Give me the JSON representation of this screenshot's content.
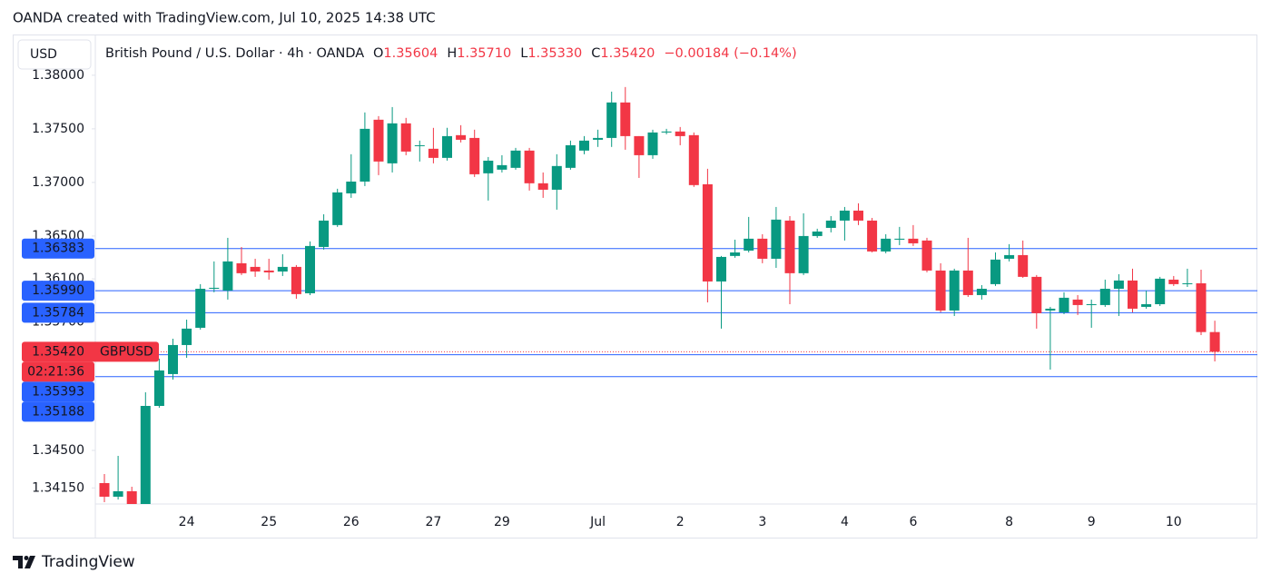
{
  "header": {
    "credit": "OANDA created with TradingView.com, Jul 10, 2025 14:38 UTC"
  },
  "footer": {
    "brand": "TradingView"
  },
  "chart_data": {
    "type": "candlestick",
    "currency": "USD",
    "symbol_title": "British Pound / U.S. Dollar · 4h · OANDA",
    "legend": [
      {
        "key": "O",
        "value": "1.35604"
      },
      {
        "key": "H",
        "value": "1.35710"
      },
      {
        "key": "L",
        "value": "1.35330"
      },
      {
        "key": "C",
        "value": "1.35420"
      }
    ],
    "change": "−0.00184 (−0.14%)",
    "up_color": "#089981",
    "down_color": "#f23645",
    "level_color": "#2962ff",
    "grid": false,
    "ylim": [
      1.34,
      1.3838
    ],
    "yticks": [
      {
        "value": 1.38,
        "label": "1.38000"
      },
      {
        "value": 1.375,
        "label": "1.37500"
      },
      {
        "value": 1.37,
        "label": "1.37000"
      },
      {
        "value": 1.365,
        "label": "1.36500"
      },
      {
        "value": 1.361,
        "label": "1.36100"
      },
      {
        "value": 1.357,
        "label": "1.35700"
      },
      {
        "value": 1.345,
        "label": "1.34500"
      },
      {
        "value": 1.3415,
        "label": "1.34150"
      }
    ],
    "levels": [
      1.36383,
      {
        "value": 1.3599,
        "label": "1.35990"
      },
      1.35784,
      1.35393,
      1.35188
    ],
    "last_price": {
      "value": 1.3542,
      "label": "1.35420",
      "name": "GBPUSD",
      "countdown": "02:21:36"
    },
    "categories": [
      null,
      null,
      null,
      null,
      null,
      null,
      "24",
      null,
      null,
      null,
      null,
      null,
      "25",
      null,
      null,
      null,
      null,
      null,
      "26",
      null,
      null,
      null,
      null,
      null,
      "27",
      null,
      null,
      null,
      null,
      "29",
      null,
      null,
      null,
      null,
      null,
      null,
      "Jul",
      null,
      null,
      null,
      null,
      null,
      "2",
      null,
      null,
      null,
      null,
      null,
      "3",
      null,
      null,
      null,
      null,
      null,
      "4",
      null,
      null,
      null,
      null,
      "6",
      null,
      null,
      null,
      null,
      null,
      null,
      "8",
      null,
      null,
      null,
      null,
      null,
      "9",
      null,
      null,
      null,
      null,
      null,
      "10",
      null,
      null,
      null
    ],
    "open": [
      1.34195,
      1.34068,
      1.34119,
      1.33991,
      1.34915,
      1.35212,
      1.35483,
      1.35644,
      1.36008,
      1.35991,
      1.36246,
      1.36212,
      1.36178,
      1.36169,
      1.36212,
      1.35966,
      1.36398,
      1.36602,
      1.36898,
      1.37008,
      1.37585,
      1.37178,
      1.37551,
      1.37339,
      1.37314,
      1.37229,
      1.37441,
      1.37415,
      1.37085,
      1.37119,
      1.37136,
      1.37297,
      1.36992,
      1.36932,
      1.37136,
      1.37297,
      1.37398,
      1.37415,
      1.37746,
      1.37432,
      1.37254,
      1.37466,
      1.37475,
      1.37441,
      1.36983,
      1.36076,
      1.36314,
      1.36364,
      1.36475,
      1.36288,
      1.36644,
      1.36153,
      1.365,
      1.36576,
      1.36644,
      1.36737,
      1.36644,
      1.36356,
      1.36466,
      1.36475,
      1.36458,
      1.36178,
      1.35805,
      1.36178,
      1.35949,
      1.36051,
      1.36288,
      1.36322,
      1.36119,
      1.35805,
      1.35788,
      1.35907,
      1.35856,
      1.35856,
      1.36008,
      1.36085,
      1.35839,
      1.35864,
      1.36093,
      1.36051,
      1.36059,
      1.35604
    ],
    "high": [
      1.3428,
      1.34449,
      1.34161,
      1.35042,
      1.35356,
      1.35542,
      1.3572,
      1.36051,
      1.36263,
      1.36483,
      1.36398,
      1.36288,
      1.36288,
      1.3633,
      1.36229,
      1.36449,
      1.36703,
      1.36941,
      1.37263,
      1.37653,
      1.37619,
      1.37703,
      1.37602,
      1.3739,
      1.37509,
      1.37509,
      1.37534,
      1.37492,
      1.37237,
      1.37254,
      1.37322,
      1.37322,
      1.37093,
      1.37263,
      1.3739,
      1.37432,
      1.37492,
      1.37847,
      1.3789,
      1.37432,
      1.37492,
      1.375,
      1.37517,
      1.37466,
      1.37127,
      1.36314,
      1.36466,
      1.36678,
      1.36517,
      1.36771,
      1.36686,
      1.36712,
      1.36568,
      1.36686,
      1.36771,
      1.36805,
      1.36669,
      1.36517,
      1.36585,
      1.36602,
      1.36483,
      1.36246,
      1.36195,
      1.36483,
      1.36042,
      1.36347,
      1.36424,
      1.36458,
      1.36136,
      1.35839,
      1.35975,
      1.35949,
      1.35907,
      1.36093,
      1.36144,
      1.36195,
      1.35991,
      1.36119,
      1.36127,
      1.36195,
      1.36186,
      1.3571
    ],
    "low": [
      1.34017,
      1.34042,
      1.33958,
      1.33975,
      1.34898,
      1.35161,
      1.35364,
      1.35627,
      1.35975,
      1.35907,
      1.36136,
      1.36119,
      1.36093,
      1.36127,
      1.35915,
      1.35949,
      1.36373,
      1.36585,
      1.36856,
      1.36966,
      1.37068,
      1.37093,
      1.37254,
      1.37195,
      1.37178,
      1.37203,
      1.37373,
      1.37051,
      1.36831,
      1.37093,
      1.37119,
      1.36924,
      1.36856,
      1.36746,
      1.37119,
      1.37263,
      1.37331,
      1.37331,
      1.37305,
      1.37042,
      1.3722,
      1.37449,
      1.37347,
      1.36958,
      1.35881,
      1.35636,
      1.36297,
      1.36347,
      1.36246,
      1.36203,
      1.35864,
      1.36136,
      1.36483,
      1.36534,
      1.36458,
      1.36602,
      1.36347,
      1.36339,
      1.36415,
      1.36407,
      1.36161,
      1.35788,
      1.35754,
      1.35932,
      1.35907,
      1.36034,
      1.36263,
      1.3611,
      1.35636,
      1.35254,
      1.35771,
      1.35763,
      1.35644,
      1.35839,
      1.35754,
      1.35788,
      1.35822,
      1.35847,
      1.36034,
      1.36025,
      1.35576,
      1.3533
    ],
    "close": [
      1.34068,
      1.34119,
      1.33991,
      1.34915,
      1.35246,
      1.35483,
      1.35636,
      1.36008,
      1.36017,
      1.36263,
      1.36153,
      1.36169,
      1.36161,
      1.36212,
      1.35958,
      1.36407,
      1.36644,
      1.36907,
      1.37008,
      1.375,
      1.37195,
      1.37551,
      1.37288,
      1.37347,
      1.37229,
      1.37432,
      1.37398,
      1.37076,
      1.37203,
      1.37161,
      1.37297,
      1.36992,
      1.36932,
      1.37153,
      1.37347,
      1.3739,
      1.37415,
      1.37746,
      1.37432,
      1.37254,
      1.37466,
      1.37475,
      1.37432,
      1.36975,
      1.36076,
      1.36305,
      1.36347,
      1.36475,
      1.36288,
      1.36653,
      1.36153,
      1.365,
      1.36542,
      1.36644,
      1.36737,
      1.36644,
      1.36356,
      1.36475,
      1.36475,
      1.36432,
      1.36178,
      1.35805,
      1.36178,
      1.35949,
      1.36008,
      1.3628,
      1.36322,
      1.36119,
      1.3578,
      1.35822,
      1.35924,
      1.35856,
      1.35864,
      1.36008,
      1.36085,
      1.35822,
      1.35864,
      1.36102,
      1.36051,
      1.36059,
      1.35604,
      1.3542
    ]
  }
}
